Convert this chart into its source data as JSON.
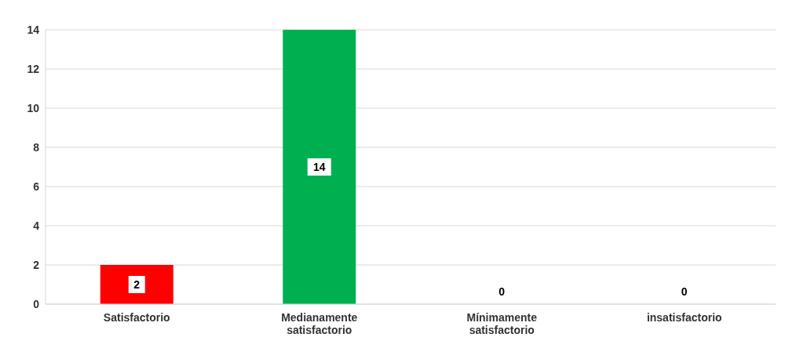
{
  "chart_data": {
    "type": "bar",
    "categories": [
      "Satisfactorio",
      "Medianamente satisfactorio",
      "Mínimamente satisfactorio",
      "insatisfactorio"
    ],
    "values": [
      2,
      14,
      0,
      0
    ],
    "colors": [
      "#ff0000",
      "#00b050",
      "#c8c800",
      "#2f55a4"
    ],
    "ylim": [
      0,
      14
    ],
    "yticks": [
      0,
      2,
      4,
      6,
      8,
      10,
      12,
      14
    ],
    "grid": "y",
    "data_labels": true
  }
}
